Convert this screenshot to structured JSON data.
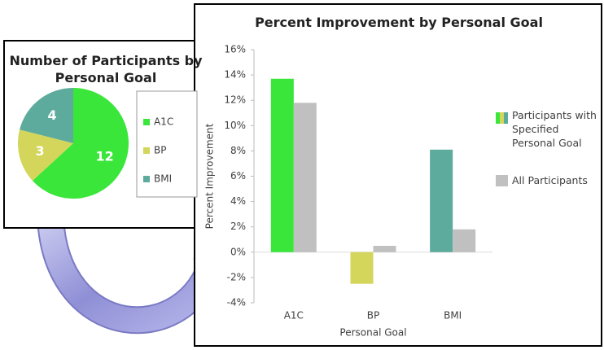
{
  "chart_data": [
    {
      "type": "pie",
      "title": "Number of Participants by Personal Goal",
      "categories": [
        "A1C",
        "BP",
        "BMI"
      ],
      "values": [
        12,
        3,
        4
      ],
      "colors": [
        "#3ae63a",
        "#d3d65a",
        "#5cab9c"
      ],
      "legend": "right"
    },
    {
      "type": "bar",
      "title": "Percent Improvement by Personal Goal",
      "categories": [
        "A1C",
        "BP",
        "BMI"
      ],
      "series": [
        {
          "name": "Participants with Specified Personal Goal",
          "colors": [
            "#3ae63a",
            "#d3d65a",
            "#5cab9c"
          ],
          "values": [
            13.7,
            -2.5,
            8.1
          ]
        },
        {
          "name": "All Participants",
          "color": "#c0c0c0",
          "values": [
            11.8,
            0.5,
            1.8
          ]
        }
      ],
      "xlabel": "Personal Goal",
      "ylabel": "Percent Improvement",
      "ylim": [
        -4,
        16
      ],
      "yticks": [
        {
          "value": -4,
          "label": "-4%"
        },
        {
          "value": -2,
          "label": "-2%"
        },
        {
          "value": 0,
          "label": "0%"
        },
        {
          "value": 2,
          "label": "2%"
        },
        {
          "value": 4,
          "label": "4%"
        },
        {
          "value": 6,
          "label": "6%"
        },
        {
          "value": 8,
          "label": "8%"
        },
        {
          "value": 10,
          "label": "10%"
        },
        {
          "value": 12,
          "label": "12%"
        },
        {
          "value": 14,
          "label": "14%"
        },
        {
          "value": 16,
          "label": "16%"
        }
      ],
      "legend": "right"
    }
  ]
}
